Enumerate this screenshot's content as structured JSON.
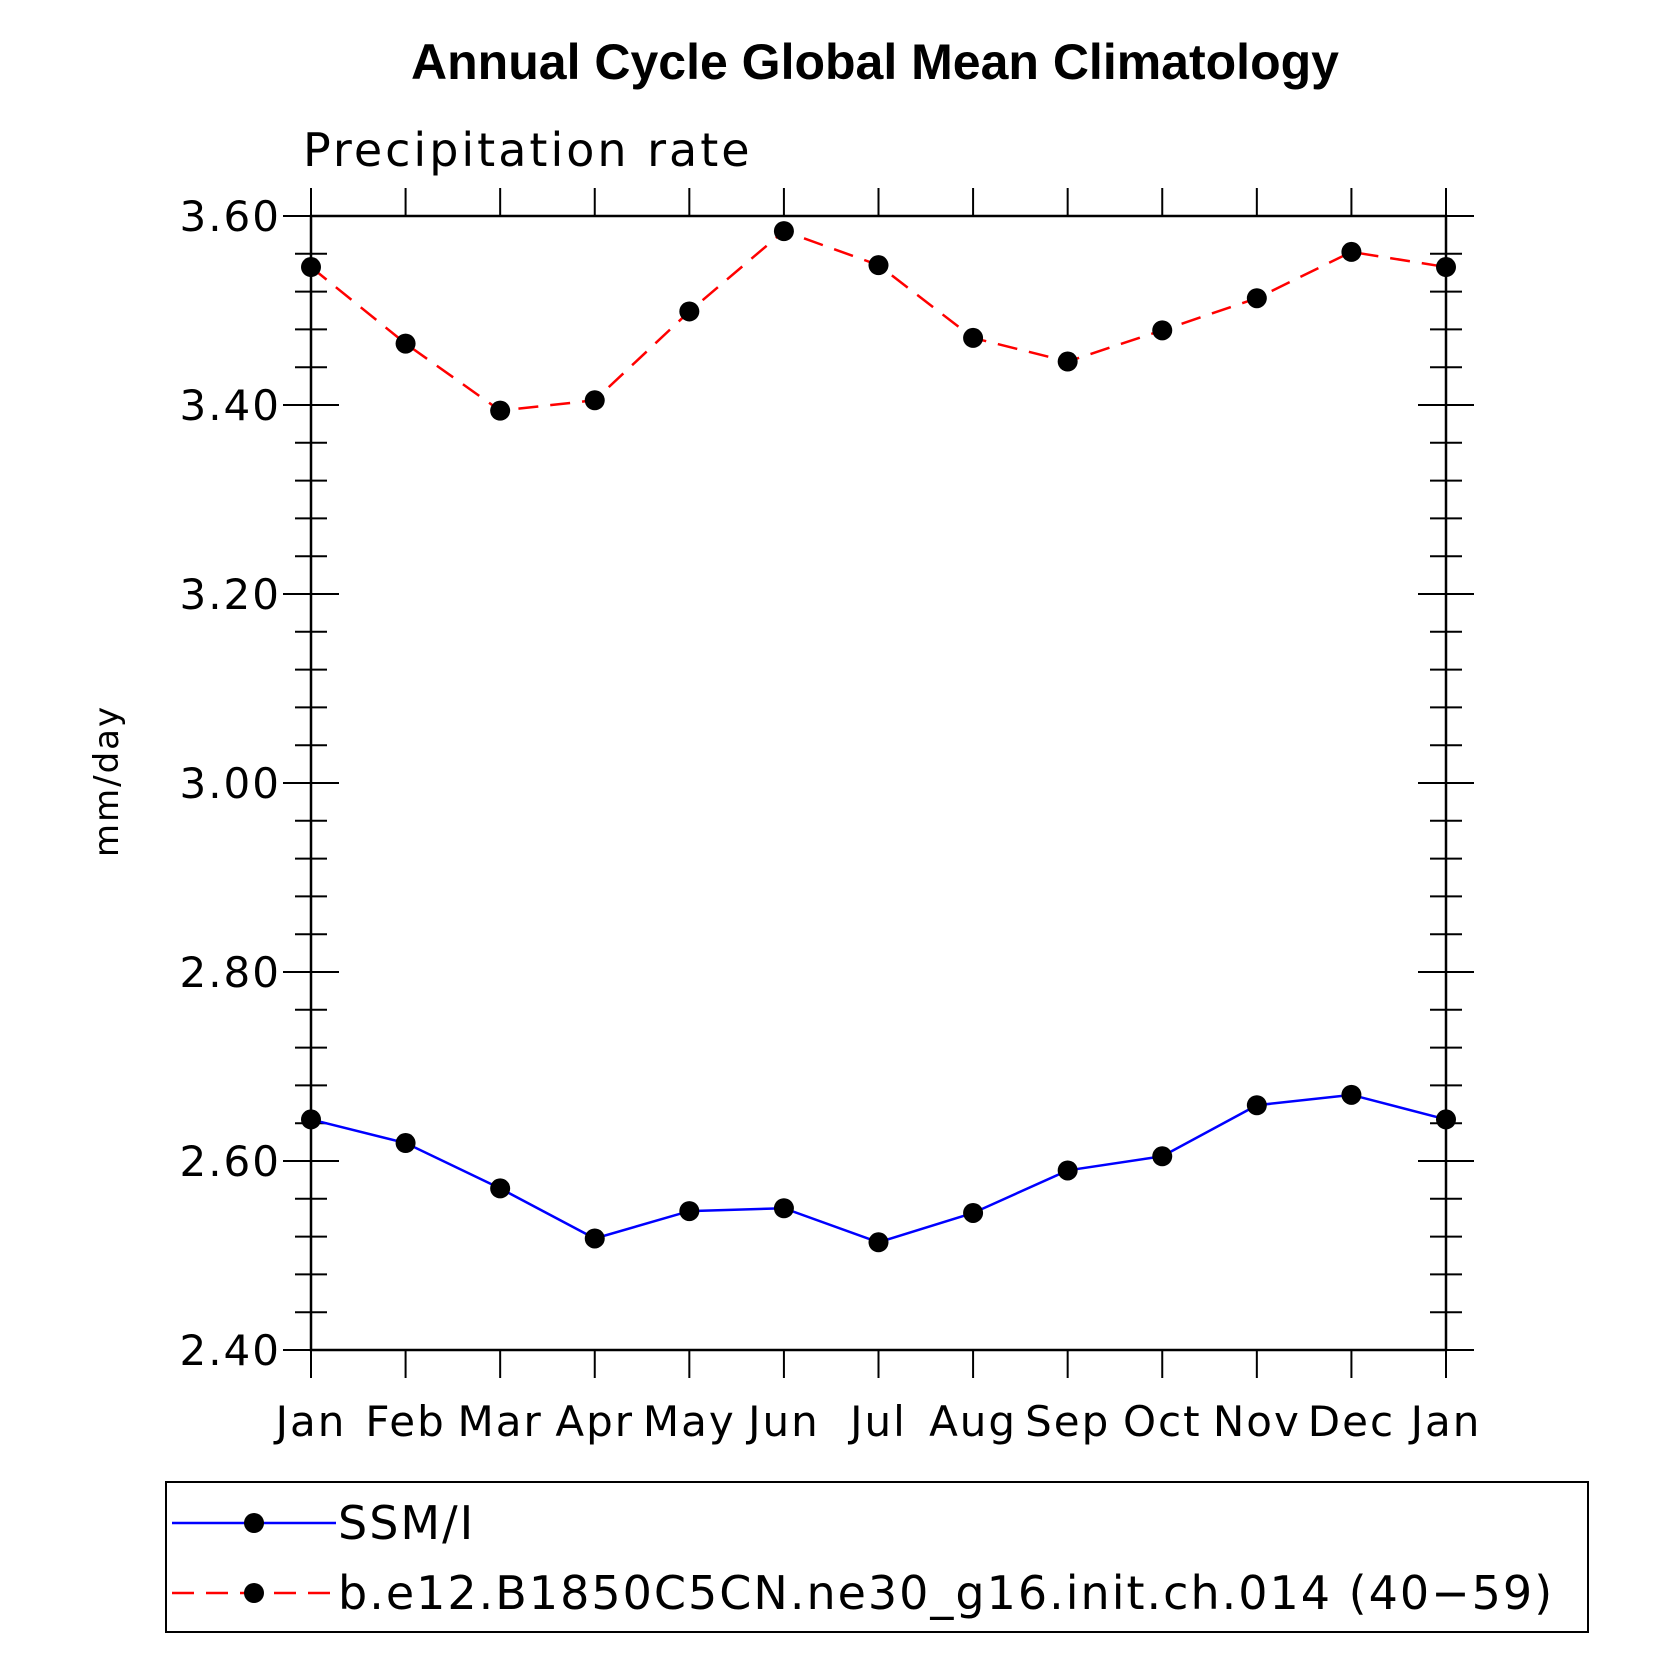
{
  "chart_data": {
    "type": "line",
    "title": "Annual Cycle Global Mean Climatology",
    "subtitle": "Precipitation rate",
    "ylabel": "mm/day",
    "xlabel": "",
    "categories": [
      "Jan",
      "Feb",
      "Mar",
      "Apr",
      "May",
      "Jun",
      "Jul",
      "Aug",
      "Sep",
      "Oct",
      "Nov",
      "Dec",
      "Jan"
    ],
    "ylim": [
      2.4,
      3.6
    ],
    "yticks": [
      "2.40",
      "2.60",
      "2.80",
      "3.00",
      "3.20",
      "3.40",
      "3.60"
    ],
    "ytick_values": [
      2.4,
      2.6,
      2.8,
      3.0,
      3.2,
      3.4,
      3.6
    ],
    "grid": false,
    "legend_position": "bottom",
    "series": [
      {
        "name": "SSM/I",
        "color": "#0000ff",
        "line_style": "solid",
        "marker": "filled-circle",
        "values": [
          2.644,
          2.619,
          2.571,
          2.518,
          2.547,
          2.55,
          2.514,
          2.545,
          2.59,
          2.605,
          2.659,
          2.67,
          2.644
        ]
      },
      {
        "name": "b.e12.B1850C5CN.ne30_g16.init.ch.014 (40−59)",
        "color": "#ff0000",
        "line_style": "dashed",
        "marker": "filled-circle",
        "values": [
          3.546,
          3.465,
          3.394,
          3.405,
          3.499,
          3.584,
          3.548,
          3.471,
          3.446,
          3.479,
          3.513,
          3.562,
          3.546
        ]
      }
    ]
  }
}
